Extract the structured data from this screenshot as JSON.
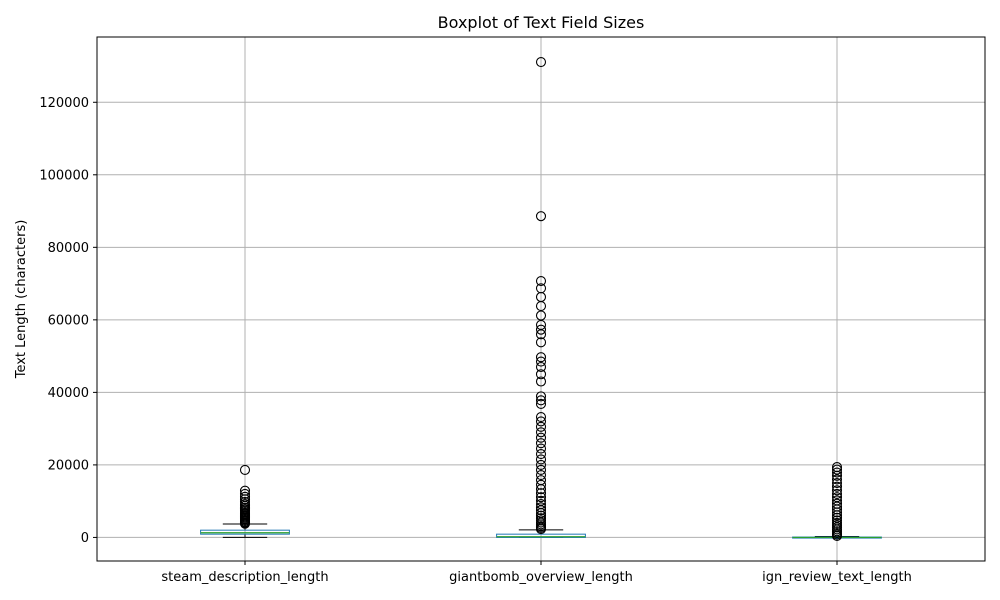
{
  "chart_data": {
    "type": "boxplot",
    "title": "Boxplot of Text Field Sizes",
    "xlabel": "",
    "ylabel": "Text Length (characters)",
    "ylim": [
      -6500,
      138000
    ],
    "yticks": [
      0,
      20000,
      40000,
      60000,
      80000,
      100000,
      120000
    ],
    "grid": true,
    "colors": {
      "box": "#1f77b4",
      "median": "#2ca02c",
      "whisker": "#000000",
      "grid": "#b0b0b0"
    },
    "boxes": [
      {
        "category": "steam_description_length",
        "whislo": 0,
        "q1": 900,
        "med": 1300,
        "q3": 2000,
        "whishi": 3700,
        "fliers": [
          3800,
          4000,
          4200,
          4500,
          4800,
          5100,
          5400,
          5700,
          6000,
          6300,
          6600,
          7000,
          7400,
          7800,
          8200,
          8700,
          9200,
          9800,
          10500,
          11200,
          12000,
          12900,
          18600
        ]
      },
      {
        "category": "giantbomb_overview_length",
        "whislo": 0,
        "q1": 0,
        "med": 200,
        "q3": 900,
        "whishi": 2100,
        "fliers": [
          2300,
          2700,
          3100,
          3600,
          4100,
          4700,
          5300,
          6000,
          6700,
          7500,
          8300,
          9200,
          10100,
          11100,
          12200,
          13300,
          14500,
          15800,
          17200,
          18600,
          20000,
          21500,
          23000,
          24500,
          26000,
          27500,
          29000,
          30500,
          32000,
          33200,
          36800,
          37800,
          38900,
          43000,
          45000,
          47000,
          48500,
          49700,
          53800,
          56000,
          57300,
          58600,
          61200,
          63800,
          66300,
          68700,
          70700,
          88600,
          131100
        ]
      },
      {
        "category": "ign_review_text_length",
        "whislo": 0,
        "q1": 0,
        "med": 0,
        "q3": 100,
        "whishi": 250,
        "fliers": [
          400,
          800,
          1200,
          1700,
          2200,
          2800,
          3400,
          4000,
          4700,
          5400,
          6100,
          6900,
          7700,
          8500,
          9300,
          10200,
          11100,
          12000,
          13000,
          14000,
          15000,
          16000,
          17000,
          17900,
          18700,
          19400
        ]
      }
    ]
  }
}
